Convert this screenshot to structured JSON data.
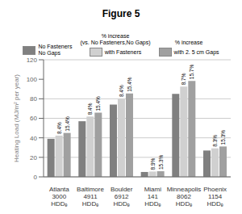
{
  "chart_data": {
    "type": "bar",
    "title": "Figure 5",
    "ylabel": "Heating Load (MJ/m² per year)",
    "categories": [
      "Atlanta\n3000\nHDDₑ",
      "Baltimore\n4911\nHDDₑ",
      "Boulder\n6912\nHDDₑ",
      "Miami\n141\nHDDₑ",
      "Minneapolis\n8062\nHDDₑ",
      "Phoenix\n1154\nHDDₑ"
    ],
    "series": [
      {
        "name": "No Fasteners\nNo Gaps",
        "color": "#808080",
        "values": [
          39.0,
          57.0,
          74.0,
          5.0,
          85.0,
          27.0
        ]
      },
      {
        "name": "with Fasteners",
        "color": "#d0d0d0",
        "values": [
          42.276,
          61.788,
          80.216,
          5.445,
          92.395,
          29.241
        ],
        "increase_labels": [
          "8.4%",
          "8.4%",
          "8.4%",
          "8.9%",
          "8.7%",
          "8.3%"
        ],
        "annotations": [
          "% increase",
          "(vs. No Fasteners,No Gaps)"
        ]
      },
      {
        "name": "with 2. 5 cm Gaps",
        "color": "#a0a0a0",
        "values": [
          45.006,
          65.778,
          85.396,
          5.765,
          98.345,
          31.131
        ],
        "increase_labels": [
          "15.4%",
          "15.4%",
          "15.4%",
          "15.3%",
          "15.7%",
          "15.3%"
        ],
        "annotations": [
          "% increase"
        ]
      }
    ],
    "ylim": [
      0,
      120
    ],
    "yticks": [
      0,
      20,
      40,
      60,
      80,
      100,
      120
    ],
    "grid": true,
    "legend": "top"
  }
}
